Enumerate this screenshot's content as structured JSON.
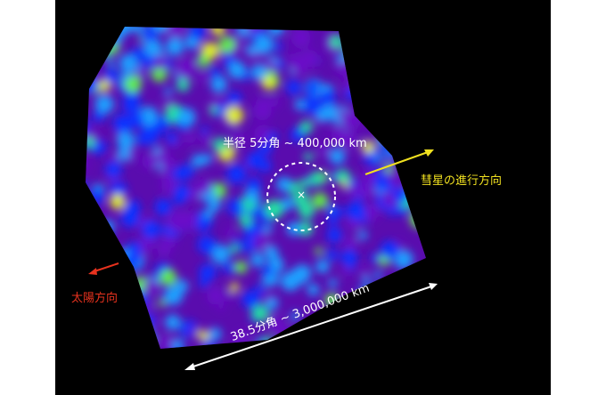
{
  "labels": {
    "radius": "半径 5分角 ~ 400,000 km",
    "comet_direction": "彗星の進行方向",
    "sun_direction": "太陽方向",
    "scale": "38.5分角 ~ 3,000,000 km"
  },
  "colors": {
    "background": "#000000",
    "comet_direction": "#f0e020",
    "sun_direction": "#e8321e",
    "annotation": "#ffffff",
    "colormap": [
      "#3a0a6e",
      "#6a10c8",
      "#1030ff",
      "#1aa0ff",
      "#20e0a0",
      "#60f040",
      "#e0f020"
    ]
  },
  "nucleus_marker": "×"
}
